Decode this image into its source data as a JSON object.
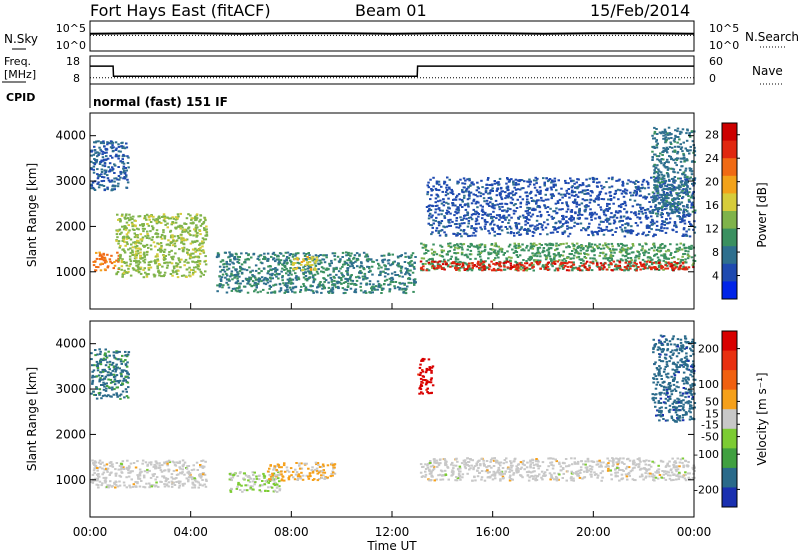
{
  "header": {
    "station": "Fort Hays East (fitACF)",
    "beam": "Beam 01",
    "date": "15/Feb/2014"
  },
  "top_panels": {
    "noise": {
      "left_label": "N.Sky",
      "right_label": "N.Search",
      "left_ticks": [
        "10^5",
        "10^0"
      ],
      "right_ticks": [
        "10^5",
        "10^0"
      ]
    },
    "freq": {
      "left_label_1": "Freq.",
      "left_label_2": "[MHz]",
      "right_label": "Nave",
      "left_ticks": [
        "18",
        "8"
      ],
      "right_ticks": [
        "60",
        "0"
      ]
    },
    "cpid": {
      "label": "CPID",
      "text": "normal (fast) 151 IF"
    }
  },
  "chart_data": [
    {
      "type": "line",
      "title": "",
      "series": [
        {
          "name": "N.Sky",
          "style": "solid",
          "x": [
            "00:00",
            "02:00",
            "04:00",
            "06:00",
            "08:00",
            "10:00",
            "12:00",
            "14:00",
            "16:00",
            "18:00",
            "20:00",
            "22:00",
            "24:00"
          ],
          "values": [
            2.9,
            3.0,
            3.0,
            2.9,
            3.0,
            3.0,
            2.9,
            3.0,
            3.0,
            2.9,
            3.0,
            3.0,
            2.9
          ]
        },
        {
          "name": "N.Search",
          "style": "dotted",
          "x": [
            "00:00",
            "02:00",
            "04:00",
            "06:00",
            "08:00",
            "10:00",
            "12:00",
            "14:00",
            "16:00",
            "18:00",
            "20:00",
            "22:00",
            "24:00"
          ],
          "values": [
            2.6,
            2.6,
            2.6,
            2.6,
            2.6,
            2.6,
            2.6,
            2.6,
            2.6,
            2.6,
            2.6,
            2.6,
            2.6
          ]
        }
      ],
      "ylim": [
        0,
        5
      ],
      "log_scale": true
    },
    {
      "type": "line",
      "title": "",
      "series": [
        {
          "name": "Freq.",
          "style": "solid",
          "x": [
            "00:00",
            "00:55",
            "00:56",
            "13:00",
            "13:01",
            "24:00"
          ],
          "values": [
            14.5,
            14.5,
            10.6,
            10.6,
            14.5,
            14.5
          ]
        },
        {
          "name": "Nave",
          "style": "dotted",
          "x": [
            "00:00",
            "24:00"
          ],
          "values": [
            12,
            12
          ]
        }
      ],
      "ylim": [
        8,
        18
      ],
      "ylim_right": [
        0,
        60
      ]
    },
    {
      "type": "heatmap",
      "ylabel": "Slant Range [km]",
      "y_ticks": [
        "1000",
        "2000",
        "3000",
        "4000"
      ],
      "ylim": [
        180,
        4500
      ],
      "colorbar": {
        "label": "Power [dB]",
        "ticks": [
          "4",
          "8",
          "12",
          "16",
          "20",
          "24",
          "28"
        ],
        "range": [
          0,
          30
        ],
        "colors": [
          "#0024e8",
          "#1f4ab0",
          "#2e6f8e",
          "#3a9060",
          "#7fb34a",
          "#d6cc3a",
          "#f2a21a",
          "#f06a14",
          "#e02810",
          "#cc0000"
        ]
      },
      "regions": [
        {
          "t": [
            0.1,
            1.1
          ],
          "range": [
            1050,
            1450
          ],
          "value": 22
        },
        {
          "t": [
            1.0,
            4.6
          ],
          "range": [
            900,
            2300
          ],
          "value": 14
        },
        {
          "t": [
            5.0,
            12.9
          ],
          "range": [
            550,
            1450
          ],
          "value": 9
        },
        {
          "t": [
            8.0,
            9.0
          ],
          "range": [
            1050,
            1350
          ],
          "value": 17
        },
        {
          "t": [
            13.1,
            24.0
          ],
          "range": [
            1050,
            1650
          ],
          "value": 11
        },
        {
          "t": [
            13.1,
            24.0
          ],
          "range": [
            1050,
            1250
          ],
          "value": 26
        },
        {
          "t": [
            0.0,
            1.5
          ],
          "range": [
            2800,
            3900
          ],
          "value": 6
        },
        {
          "t": [
            13.3,
            24.0
          ],
          "range": [
            1800,
            3100
          ],
          "value": 5
        },
        {
          "t": [
            22.3,
            24.0
          ],
          "range": [
            2300,
            4200
          ],
          "value": 8
        }
      ]
    },
    {
      "type": "heatmap",
      "ylabel": "Slant Range [km]",
      "xlabel": "Time UT",
      "x_ticks": [
        "00:00",
        "04:00",
        "08:00",
        "12:00",
        "16:00",
        "20:00",
        "00:00"
      ],
      "y_ticks": [
        "1000",
        "2000",
        "3000",
        "4000"
      ],
      "ylim": [
        180,
        4500
      ],
      "colorbar": {
        "label": "Velocity [m s⁻¹]",
        "ticks": [
          "200",
          "100",
          "50",
          "15",
          "-15",
          "-50",
          "-100",
          "-200"
        ],
        "range": [
          -250,
          250
        ],
        "colors": [
          "#d80000",
          "#e83010",
          "#f06010",
          "#f5a01a",
          "#c8c8c8",
          "#7ccc33",
          "#40a040",
          "#2a6a8a",
          "#1a30b0"
        ]
      },
      "regions": [
        {
          "t": [
            0.0,
            4.6
          ],
          "range": [
            850,
            1450
          ],
          "value": 0
        },
        {
          "t": [
            5.5,
            7.5
          ],
          "range": [
            750,
            1200
          ],
          "value": 25
        },
        {
          "t": [
            7.0,
            9.7
          ],
          "range": [
            1000,
            1400
          ],
          "value": -35
        },
        {
          "t": [
            13.1,
            24.0
          ],
          "range": [
            1000,
            1500
          ],
          "value": 0
        },
        {
          "t": [
            13.0,
            13.6
          ],
          "range": [
            2900,
            3700
          ],
          "value": -220
        },
        {
          "t": [
            0.0,
            1.5
          ],
          "range": [
            2800,
            3900
          ],
          "value": 150
        },
        {
          "t": [
            22.3,
            24.0
          ],
          "range": [
            2300,
            4200
          ],
          "value": 170
        }
      ]
    }
  ]
}
